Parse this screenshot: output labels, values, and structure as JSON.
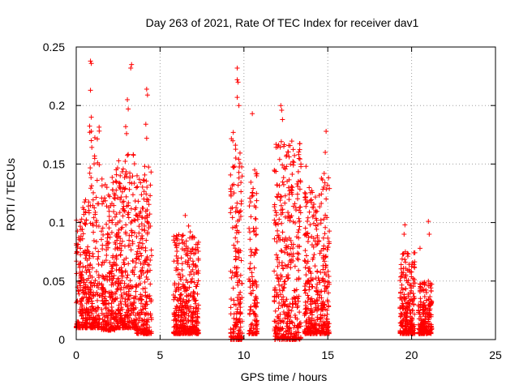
{
  "chart_data": {
    "type": "scatter",
    "title": "Day 263 of 2021, Rate Of TEC Index for receiver dav1",
    "xlabel": "GPS time / hours",
    "ylabel": "ROTI / TECUs",
    "xlim": [
      0,
      25
    ],
    "ylim": [
      0,
      0.25
    ],
    "x_ticks": [
      0,
      5,
      10,
      15,
      20,
      25
    ],
    "y_ticks": [
      0,
      0.05,
      0.1,
      0.15,
      0.2,
      0.25
    ],
    "x_tick_labels": [
      "0",
      "5",
      "10",
      "15",
      "20",
      "25"
    ],
    "y_tick_labels": [
      "0",
      "0.05",
      "0.1",
      "0.15",
      "0.2",
      "0.25"
    ],
    "grid": true,
    "marker": "+",
    "color": "#ff0000",
    "clusters": [
      {
        "x_range": [
          0.0,
          0.8
        ],
        "y_range": [
          0.01,
          0.12
        ]
      },
      {
        "x_range": [
          0.8,
          1.4
        ],
        "y_range": [
          0.01,
          0.19
        ],
        "outliers": [
          [
            0.85,
            0.238
          ],
          [
            0.9,
            0.236
          ],
          [
            0.85,
            0.213
          ],
          [
            0.9,
            0.19
          ],
          [
            0.9,
            0.178
          ],
          [
            0.9,
            0.17
          ]
        ]
      },
      {
        "x_range": [
          1.5,
          2.3
        ],
        "y_range": [
          0.008,
          0.14
        ]
      },
      {
        "x_range": [
          2.3,
          3.6
        ],
        "y_range": [
          0.01,
          0.16
        ],
        "outliers": [
          [
            3.3,
            0.235
          ],
          [
            3.25,
            0.232
          ],
          [
            3.05,
            0.205
          ],
          [
            3.1,
            0.197
          ],
          [
            2.95,
            0.182
          ],
          [
            3.0,
            0.176
          ]
        ]
      },
      {
        "x_range": [
          3.6,
          4.5
        ],
        "y_range": [
          0.005,
          0.15
        ],
        "outliers": [
          [
            4.2,
            0.214
          ],
          [
            4.25,
            0.209
          ],
          [
            4.15,
            0.184
          ],
          [
            4.2,
            0.172
          ]
        ]
      },
      {
        "x_range": [
          5.8,
          7.3
        ],
        "y_range": [
          0.005,
          0.09
        ],
        "outliers": [
          [
            6.5,
            0.106
          ],
          [
            6.7,
            0.097
          ],
          [
            6.8,
            0.092
          ]
        ]
      },
      {
        "x_range": [
          9.2,
          9.9
        ],
        "y_range": [
          0.0,
          0.18
        ],
        "outliers": [
          [
            9.6,
            0.232
          ],
          [
            9.6,
            0.222
          ],
          [
            9.65,
            0.22
          ],
          [
            9.6,
            0.207
          ],
          [
            9.7,
            0.2
          ]
        ]
      },
      {
        "x_range": [
          10.3,
          10.8
        ],
        "y_range": [
          0.005,
          0.145
        ],
        "outliers": [
          [
            10.5,
            0.193
          ]
        ]
      },
      {
        "x_range": [
          11.8,
          12.6
        ],
        "y_range": [
          0.0,
          0.17
        ],
        "outliers": [
          [
            12.2,
            0.2
          ],
          [
            12.25,
            0.196
          ],
          [
            12.3,
            0.188
          ]
        ]
      },
      {
        "x_range": [
          12.6,
          13.4
        ],
        "y_range": [
          0.0,
          0.17
        ]
      },
      {
        "x_range": [
          13.6,
          14.5
        ],
        "y_range": [
          0.005,
          0.13
        ],
        "outliers": [
          [
            13.7,
            0.148
          ]
        ]
      },
      {
        "x_range": [
          14.5,
          15.1
        ],
        "y_range": [
          0.005,
          0.15
        ],
        "outliers": [
          [
            14.9,
            0.178
          ],
          [
            14.85,
            0.16
          ]
        ]
      },
      {
        "x_range": [
          19.3,
          20.2
        ],
        "y_range": [
          0.005,
          0.075
        ],
        "outliers": [
          [
            19.6,
            0.098
          ],
          [
            19.55,
            0.09
          ]
        ]
      },
      {
        "x_range": [
          20.4,
          21.2
        ],
        "y_range": [
          0.005,
          0.05
        ],
        "outliers": [
          [
            21.0,
            0.101
          ],
          [
            21.05,
            0.09
          ],
          [
            20.5,
            0.078
          ]
        ]
      }
    ]
  }
}
